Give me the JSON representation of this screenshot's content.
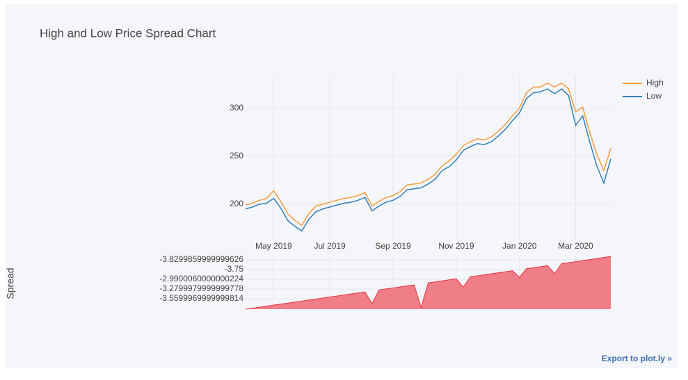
{
  "chart_data": [
    {
      "type": "line",
      "title": "High and Low Price Spread Chart",
      "categories": [
        null,
        null,
        null,
        null,
        "May 2019",
        null,
        null,
        null,
        null,
        null,
        null,
        null,
        "Jul 2019",
        null,
        null,
        null,
        null,
        null,
        null,
        null,
        null,
        "Sep 2019",
        null,
        null,
        null,
        null,
        null,
        null,
        null,
        null,
        "Nov 2019",
        null,
        null,
        null,
        null,
        null,
        null,
        null,
        null,
        "Jan 2020",
        null,
        null,
        null,
        null,
        null,
        null,
        null,
        "Mar 2020",
        null,
        null,
        null,
        null,
        null
      ],
      "series": [
        {
          "name": "High",
          "color": "#f39c3d",
          "values": [
            199,
            201,
            204,
            206,
            214,
            203,
            190,
            183,
            178,
            190,
            198,
            200,
            202,
            204,
            206,
            207,
            209,
            212,
            198,
            203,
            207,
            209,
            213,
            220,
            221,
            222,
            226,
            231,
            240,
            245,
            252,
            261,
            265,
            268,
            267,
            270,
            276,
            283,
            292,
            300,
            316,
            322,
            322,
            326,
            322,
            326,
            320,
            296,
            301,
            275,
            252,
            235,
            258
          ]
        },
        {
          "name": "Low",
          "color": "#2e7fb8",
          "values": [
            195,
            197,
            200,
            201,
            206,
            196,
            183,
            177,
            172,
            184,
            192,
            195,
            197,
            199,
            201,
            202,
            204,
            207,
            193,
            198,
            202,
            204,
            208,
            215,
            216,
            217,
            221,
            226,
            235,
            239,
            246,
            256,
            260,
            263,
            262,
            265,
            271,
            278,
            287,
            295,
            310,
            316,
            317,
            320,
            315,
            320,
            313,
            282,
            292,
            265,
            240,
            222,
            247
          ]
        }
      ],
      "ylim": [
        163,
        333
      ],
      "yticks": [
        200,
        250,
        300
      ],
      "grid": true,
      "legend": "top-right"
    },
    {
      "type": "area",
      "y_title": "Spread",
      "color": "#e8323c",
      "fill": "#f07e88",
      "values": [
        -1.07,
        -0.97,
        -0.86,
        -0.76,
        -0.65,
        -0.55,
        -0.45,
        -0.34,
        -0.24,
        -0.13,
        -0.03,
        0.07,
        0.18,
        0.28,
        0.39,
        0.49,
        0.59,
        0.7,
        -0.5,
        0.91,
        1.01,
        1.11,
        1.22,
        1.32,
        1.43,
        -0.9,
        1.63,
        1.74,
        1.84,
        1.95,
        2.05,
        1.2,
        2.26,
        2.36,
        2.47,
        2.57,
        2.67,
        2.78,
        2.88,
        2.2,
        3.09,
        3.19,
        3.3,
        3.4,
        2.6,
        3.61,
        3.71,
        3.82,
        3.92,
        4.03,
        4.13,
        4.24,
        4.35
      ],
      "ylim": [
        -1.07,
        4.36
      ],
      "yticks": [
        {
          "value": 0,
          "label": "-3.5599969999999814"
        },
        {
          "value": 1,
          "label": "-3.2799979999999778"
        },
        {
          "value": 2,
          "label": "-2.9900060000000224"
        },
        {
          "value": 3,
          "label": "-3.75"
        },
        {
          "value": 4,
          "label": "-3.8299859999999626"
        }
      ],
      "grid": true
    }
  ],
  "export_link": "Export to plot.ly »"
}
